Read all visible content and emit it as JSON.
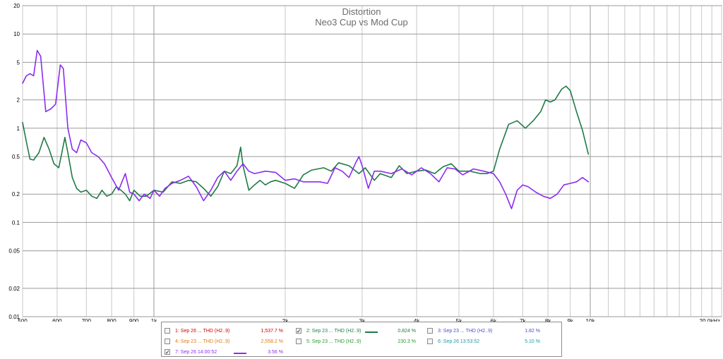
{
  "chart_data": {
    "type": "line",
    "title": "Distortion",
    "subtitle": "Neo3 Cup vs Mod Cup",
    "x_scale": "log",
    "y_scale": "log",
    "xlim": [
      500,
      20000
    ],
    "ylim": [
      0.01,
      20
    ],
    "grid": true,
    "x_ticks": [
      {
        "value": 500,
        "label": "500"
      },
      {
        "value": 600,
        "label": "600"
      },
      {
        "value": 700,
        "label": "700"
      },
      {
        "value": 800,
        "label": "800"
      },
      {
        "value": 900,
        "label": "900"
      },
      {
        "value": 1000,
        "label": "1k"
      },
      {
        "value": 2000,
        "label": "2k"
      },
      {
        "value": 3000,
        "label": "3k"
      },
      {
        "value": 4000,
        "label": "4k"
      },
      {
        "value": 5000,
        "label": "5k"
      },
      {
        "value": 6000,
        "label": "6k"
      },
      {
        "value": 7000,
        "label": "7k"
      },
      {
        "value": 8000,
        "label": "8k"
      },
      {
        "value": 9000,
        "label": "9k"
      },
      {
        "value": 10000,
        "label": "10k"
      },
      {
        "value": 20000,
        "label": "20.0kHz"
      }
    ],
    "y_ticks": [
      {
        "value": 20,
        "label": "20"
      },
      {
        "value": 10,
        "label": "10"
      },
      {
        "value": 5,
        "label": "5"
      },
      {
        "value": 2,
        "label": "2"
      },
      {
        "value": 1,
        "label": "1"
      },
      {
        "value": 0.5,
        "label": "0.5"
      },
      {
        "value": 0.2,
        "label": "0.2"
      },
      {
        "value": 0.1,
        "label": "0.1"
      },
      {
        "value": 0.05,
        "label": "0.05"
      },
      {
        "value": 0.02,
        "label": "0.02"
      },
      {
        "value": 0.01,
        "label": "0.01"
      }
    ],
    "series": [
      {
        "name": "2: Sep 23 ... THD (H2..9)",
        "color": "#1f7a45",
        "points": [
          [
            500,
            1.15
          ],
          [
            510,
            0.72
          ],
          [
            520,
            0.47
          ],
          [
            530,
            0.46
          ],
          [
            545,
            0.55
          ],
          [
            560,
            0.8
          ],
          [
            575,
            0.6
          ],
          [
            590,
            0.42
          ],
          [
            605,
            0.38
          ],
          [
            615,
            0.55
          ],
          [
            625,
            0.8
          ],
          [
            635,
            0.55
          ],
          [
            650,
            0.3
          ],
          [
            665,
            0.23
          ],
          [
            680,
            0.21
          ],
          [
            700,
            0.22
          ],
          [
            720,
            0.19
          ],
          [
            740,
            0.18
          ],
          [
            760,
            0.22
          ],
          [
            780,
            0.19
          ],
          [
            800,
            0.2
          ],
          [
            820,
            0.24
          ],
          [
            840,
            0.22
          ],
          [
            860,
            0.2
          ],
          [
            880,
            0.17
          ],
          [
            900,
            0.22
          ],
          [
            930,
            0.19
          ],
          [
            960,
            0.19
          ],
          [
            1000,
            0.22
          ],
          [
            1050,
            0.21
          ],
          [
            1100,
            0.27
          ],
          [
            1150,
            0.26
          ],
          [
            1200,
            0.28
          ],
          [
            1250,
            0.27
          ],
          [
            1300,
            0.23
          ],
          [
            1350,
            0.19
          ],
          [
            1400,
            0.24
          ],
          [
            1450,
            0.35
          ],
          [
            1500,
            0.33
          ],
          [
            1550,
            0.4
          ],
          [
            1580,
            0.63
          ],
          [
            1600,
            0.4
          ],
          [
            1650,
            0.22
          ],
          [
            1700,
            0.25
          ],
          [
            1750,
            0.28
          ],
          [
            1800,
            0.25
          ],
          [
            1850,
            0.27
          ],
          [
            1900,
            0.28
          ],
          [
            2000,
            0.26
          ],
          [
            2100,
            0.23
          ],
          [
            2200,
            0.32
          ],
          [
            2300,
            0.36
          ],
          [
            2450,
            0.38
          ],
          [
            2550,
            0.35
          ],
          [
            2650,
            0.43
          ],
          [
            2800,
            0.4
          ],
          [
            2950,
            0.33
          ],
          [
            3050,
            0.38
          ],
          [
            3200,
            0.28
          ],
          [
            3300,
            0.33
          ],
          [
            3500,
            0.3
          ],
          [
            3650,
            0.4
          ],
          [
            3800,
            0.33
          ],
          [
            4000,
            0.35
          ],
          [
            4200,
            0.36
          ],
          [
            4400,
            0.33
          ],
          [
            4600,
            0.39
          ],
          [
            4800,
            0.42
          ],
          [
            5000,
            0.35
          ],
          [
            5300,
            0.35
          ],
          [
            5600,
            0.33
          ],
          [
            5800,
            0.33
          ],
          [
            6000,
            0.35
          ],
          [
            6200,
            0.6
          ],
          [
            6500,
            1.1
          ],
          [
            6800,
            1.2
          ],
          [
            7100,
            1.0
          ],
          [
            7400,
            1.2
          ],
          [
            7700,
            1.5
          ],
          [
            7900,
            2.0
          ],
          [
            8100,
            1.9
          ],
          [
            8300,
            2.0
          ],
          [
            8600,
            2.6
          ],
          [
            8800,
            2.8
          ],
          [
            9000,
            2.5
          ],
          [
            9300,
            1.5
          ],
          [
            9600,
            0.95
          ],
          [
            9900,
            0.53
          ]
        ]
      },
      {
        "name": "7: Sep 26 14:00:52",
        "color": "#8c2bf0",
        "points": [
          [
            500,
            3.0
          ],
          [
            510,
            3.6
          ],
          [
            520,
            3.8
          ],
          [
            530,
            3.6
          ],
          [
            540,
            6.7
          ],
          [
            550,
            5.8
          ],
          [
            565,
            1.5
          ],
          [
            580,
            1.6
          ],
          [
            595,
            1.8
          ],
          [
            610,
            4.7
          ],
          [
            620,
            4.3
          ],
          [
            635,
            1.0
          ],
          [
            650,
            0.6
          ],
          [
            665,
            0.55
          ],
          [
            680,
            0.75
          ],
          [
            700,
            0.7
          ],
          [
            720,
            0.55
          ],
          [
            745,
            0.5
          ],
          [
            770,
            0.42
          ],
          [
            800,
            0.3
          ],
          [
            830,
            0.22
          ],
          [
            860,
            0.33
          ],
          [
            880,
            0.21
          ],
          [
            900,
            0.2
          ],
          [
            925,
            0.17
          ],
          [
            950,
            0.2
          ],
          [
            980,
            0.18
          ],
          [
            1000,
            0.22
          ],
          [
            1030,
            0.19
          ],
          [
            1060,
            0.23
          ],
          [
            1100,
            0.26
          ],
          [
            1150,
            0.28
          ],
          [
            1200,
            0.31
          ],
          [
            1250,
            0.24
          ],
          [
            1300,
            0.17
          ],
          [
            1350,
            0.22
          ],
          [
            1400,
            0.3
          ],
          [
            1450,
            0.35
          ],
          [
            1500,
            0.28
          ],
          [
            1550,
            0.35
          ],
          [
            1600,
            0.42
          ],
          [
            1650,
            0.35
          ],
          [
            1700,
            0.33
          ],
          [
            1800,
            0.35
          ],
          [
            1900,
            0.34
          ],
          [
            2000,
            0.28
          ],
          [
            2100,
            0.29
          ],
          [
            2200,
            0.27
          ],
          [
            2300,
            0.27
          ],
          [
            2400,
            0.27
          ],
          [
            2500,
            0.26
          ],
          [
            2600,
            0.38
          ],
          [
            2700,
            0.35
          ],
          [
            2800,
            0.3
          ],
          [
            2900,
            0.43
          ],
          [
            2950,
            0.5
          ],
          [
            3000,
            0.4
          ],
          [
            3100,
            0.23
          ],
          [
            3200,
            0.35
          ],
          [
            3300,
            0.35
          ],
          [
            3500,
            0.33
          ],
          [
            3700,
            0.37
          ],
          [
            3900,
            0.32
          ],
          [
            4100,
            0.38
          ],
          [
            4300,
            0.33
          ],
          [
            4500,
            0.27
          ],
          [
            4700,
            0.38
          ],
          [
            4900,
            0.37
          ],
          [
            5100,
            0.32
          ],
          [
            5400,
            0.37
          ],
          [
            5700,
            0.35
          ],
          [
            6000,
            0.33
          ],
          [
            6200,
            0.27
          ],
          [
            6400,
            0.2
          ],
          [
            6600,
            0.14
          ],
          [
            6800,
            0.22
          ],
          [
            7000,
            0.25
          ],
          [
            7200,
            0.24
          ],
          [
            7500,
            0.21
          ],
          [
            7800,
            0.19
          ],
          [
            8100,
            0.18
          ],
          [
            8400,
            0.2
          ],
          [
            8700,
            0.25
          ],
          [
            9000,
            0.26
          ],
          [
            9300,
            0.27
          ],
          [
            9600,
            0.3
          ],
          [
            9900,
            0.27
          ]
        ]
      }
    ]
  },
  "legend": {
    "items": [
      {
        "checked": false,
        "label": "1: Sep 26 ... THD (H2..9)",
        "value": "1,537.7 %",
        "color": "#cc0000",
        "swatch": false
      },
      {
        "checked": true,
        "label": "2: Sep 23 ... THD (H2..9)",
        "value": "0.824 %",
        "color": "#1f7a45",
        "swatch": true
      },
      {
        "checked": false,
        "label": "3: Sep 23 ... THD (H2..9)",
        "value": "1.82 %",
        "color": "#4b4bd6",
        "swatch": false
      },
      {
        "checked": false,
        "label": "4: Sep 23 ... THD (H2..9)",
        "value": "2,558.2 %",
        "color": "#e07a10",
        "swatch": false
      },
      {
        "checked": false,
        "label": "5: Sep 23 ... THD (H2..9)",
        "value": "230.3 %",
        "color": "#2a9a2a",
        "swatch": false
      },
      {
        "checked": false,
        "label": "6: Sep 26 13:53:52",
        "value": "5.10 %",
        "color": "#1a9aa8",
        "swatch": false
      },
      {
        "checked": true,
        "label": "7: Sep 26 14:00:52",
        "value": "3.56 %",
        "color": "#8c2bf0",
        "swatch": true
      }
    ]
  }
}
